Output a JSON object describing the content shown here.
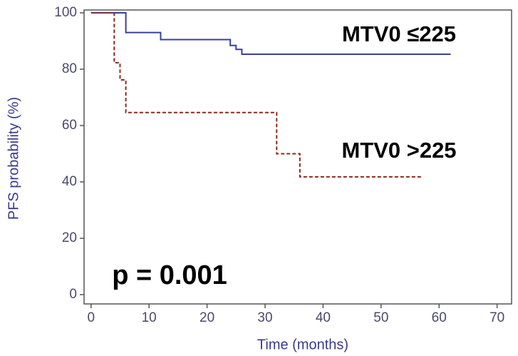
{
  "chart_data": {
    "type": "step",
    "xlabel": "Time (months)",
    "ylabel": "PFS probability (%)",
    "annotation": "p = 0.001",
    "xlim": [
      -1.2,
      72.5
    ],
    "ylim": [
      -3.3,
      101
    ],
    "xticks": [
      0,
      10,
      20,
      30,
      40,
      50,
      60,
      70
    ],
    "yticks": [
      0,
      20,
      40,
      60,
      80,
      100
    ],
    "series": [
      {
        "name": "MTV0 ≤225",
        "color": "#3a3f9a",
        "line_style": "solid",
        "x": [
          0,
          6,
          12,
          24,
          25,
          26,
          62
        ],
        "values": [
          100,
          93,
          90.5,
          88.4,
          87,
          85.3,
          85.3
        ]
      },
      {
        "name": "MTV0 >225",
        "color": "#8b2a1e",
        "line_style": "dashed",
        "x": [
          0,
          4,
          5,
          6,
          32,
          36,
          57
        ],
        "values": [
          100,
          82.3,
          76.2,
          64.6,
          50,
          41.8,
          41.8
        ]
      }
    ]
  }
}
